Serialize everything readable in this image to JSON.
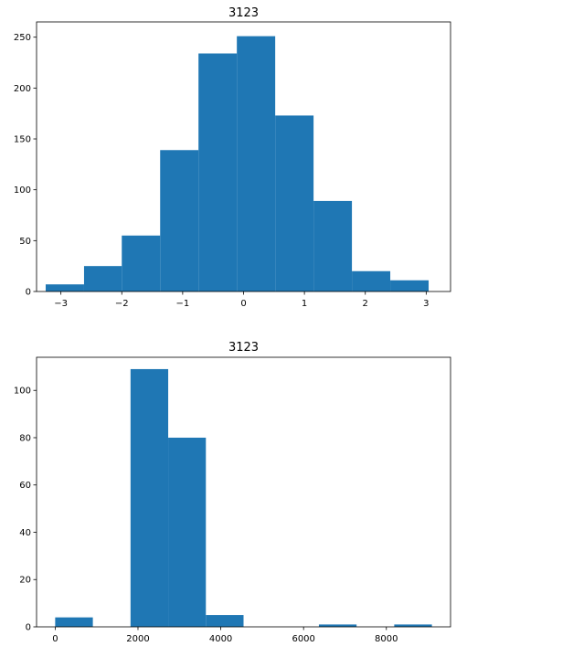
{
  "chart_data": [
    {
      "type": "bar",
      "title": "3123",
      "xlabel": "",
      "ylabel": "",
      "xlim": [
        -3.4,
        3.4
      ],
      "ylim": [
        0,
        265
      ],
      "grid": false,
      "xticks": [
        -3,
        -2,
        -1,
        0,
        1,
        2,
        3
      ],
      "xtick_labels": [
        "−3",
        "−2",
        "−1",
        "0",
        "1",
        "2",
        "3"
      ],
      "yticks": [
        0,
        50,
        100,
        150,
        200,
        250
      ],
      "ytick_labels": [
        "0",
        "50",
        "100",
        "150",
        "200",
        "250"
      ],
      "bins": [
        {
          "x0": -3.25,
          "x1": -2.62,
          "value": 7
        },
        {
          "x0": -2.62,
          "x1": -2.0,
          "value": 25
        },
        {
          "x0": -2.0,
          "x1": -1.37,
          "value": 55
        },
        {
          "x0": -1.37,
          "x1": -0.74,
          "value": 139
        },
        {
          "x0": -0.74,
          "x1": -0.11,
          "value": 234
        },
        {
          "x0": -0.11,
          "x1": 0.52,
          "value": 251
        },
        {
          "x0": 0.52,
          "x1": 1.15,
          "value": 173
        },
        {
          "x0": 1.15,
          "x1": 1.78,
          "value": 89
        },
        {
          "x0": 1.78,
          "x1": 2.41,
          "value": 20
        },
        {
          "x0": 2.41,
          "x1": 3.04,
          "value": 11
        }
      ],
      "color": "#1f77b4"
    },
    {
      "type": "bar",
      "title": "3123",
      "xlabel": "",
      "ylabel": "",
      "xlim": [
        -450,
        9550
      ],
      "ylim": [
        0,
        114
      ],
      "grid": false,
      "xticks": [
        0,
        2000,
        4000,
        6000,
        8000
      ],
      "xtick_labels": [
        "0",
        "2000",
        "4000",
        "6000",
        "8000"
      ],
      "yticks": [
        0,
        20,
        40,
        60,
        80,
        100
      ],
      "ytick_labels": [
        "0",
        "20",
        "40",
        "60",
        "80",
        "100"
      ],
      "bins": [
        {
          "x0": 0,
          "x1": 910,
          "value": 4
        },
        {
          "x0": 910,
          "x1": 1820,
          "value": 0
        },
        {
          "x0": 1820,
          "x1": 2730,
          "value": 109
        },
        {
          "x0": 2730,
          "x1": 3640,
          "value": 80
        },
        {
          "x0": 3640,
          "x1": 4550,
          "value": 5
        },
        {
          "x0": 4550,
          "x1": 5460,
          "value": 0
        },
        {
          "x0": 5460,
          "x1": 6370,
          "value": 0
        },
        {
          "x0": 6370,
          "x1": 7280,
          "value": 1
        },
        {
          "x0": 7280,
          "x1": 8190,
          "value": 0
        },
        {
          "x0": 8190,
          "x1": 9100,
          "value": 1
        }
      ],
      "color": "#1f77b4"
    }
  ]
}
